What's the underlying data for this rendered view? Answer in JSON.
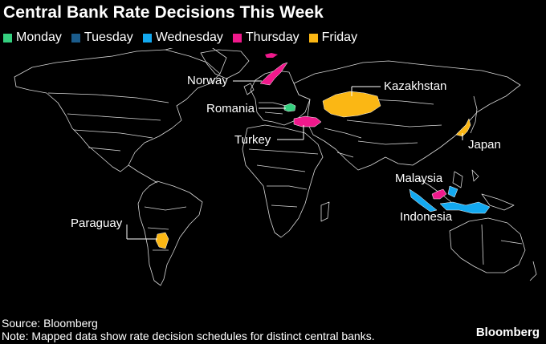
{
  "title": "Central Bank Rate Decisions This Week",
  "legend": [
    {
      "label": "Monday",
      "color": "#35d07f"
    },
    {
      "label": "Tuesday",
      "color": "#1b5c8c"
    },
    {
      "label": "Wednesday",
      "color": "#13a9f0"
    },
    {
      "label": "Thursday",
      "color": "#f0198c"
    },
    {
      "label": "Friday",
      "color": "#fbb714"
    }
  ],
  "countries": [
    {
      "label": "Norway",
      "day": "Thursday"
    },
    {
      "label": "Romania",
      "day": "Monday"
    },
    {
      "label": "Turkey",
      "day": "Thursday"
    },
    {
      "label": "Kazakhstan",
      "day": "Friday"
    },
    {
      "label": "Japan",
      "day": "Friday"
    },
    {
      "label": "Malaysia",
      "day": "Thursday"
    },
    {
      "label": "Indonesia",
      "day": "Wednesday"
    },
    {
      "label": "Paraguay",
      "day": "Friday"
    }
  ],
  "source": "Source: Bloomberg",
  "note": "Note: Mapped data show rate decision schedules for distinct central banks.",
  "brand": "Bloomberg"
}
